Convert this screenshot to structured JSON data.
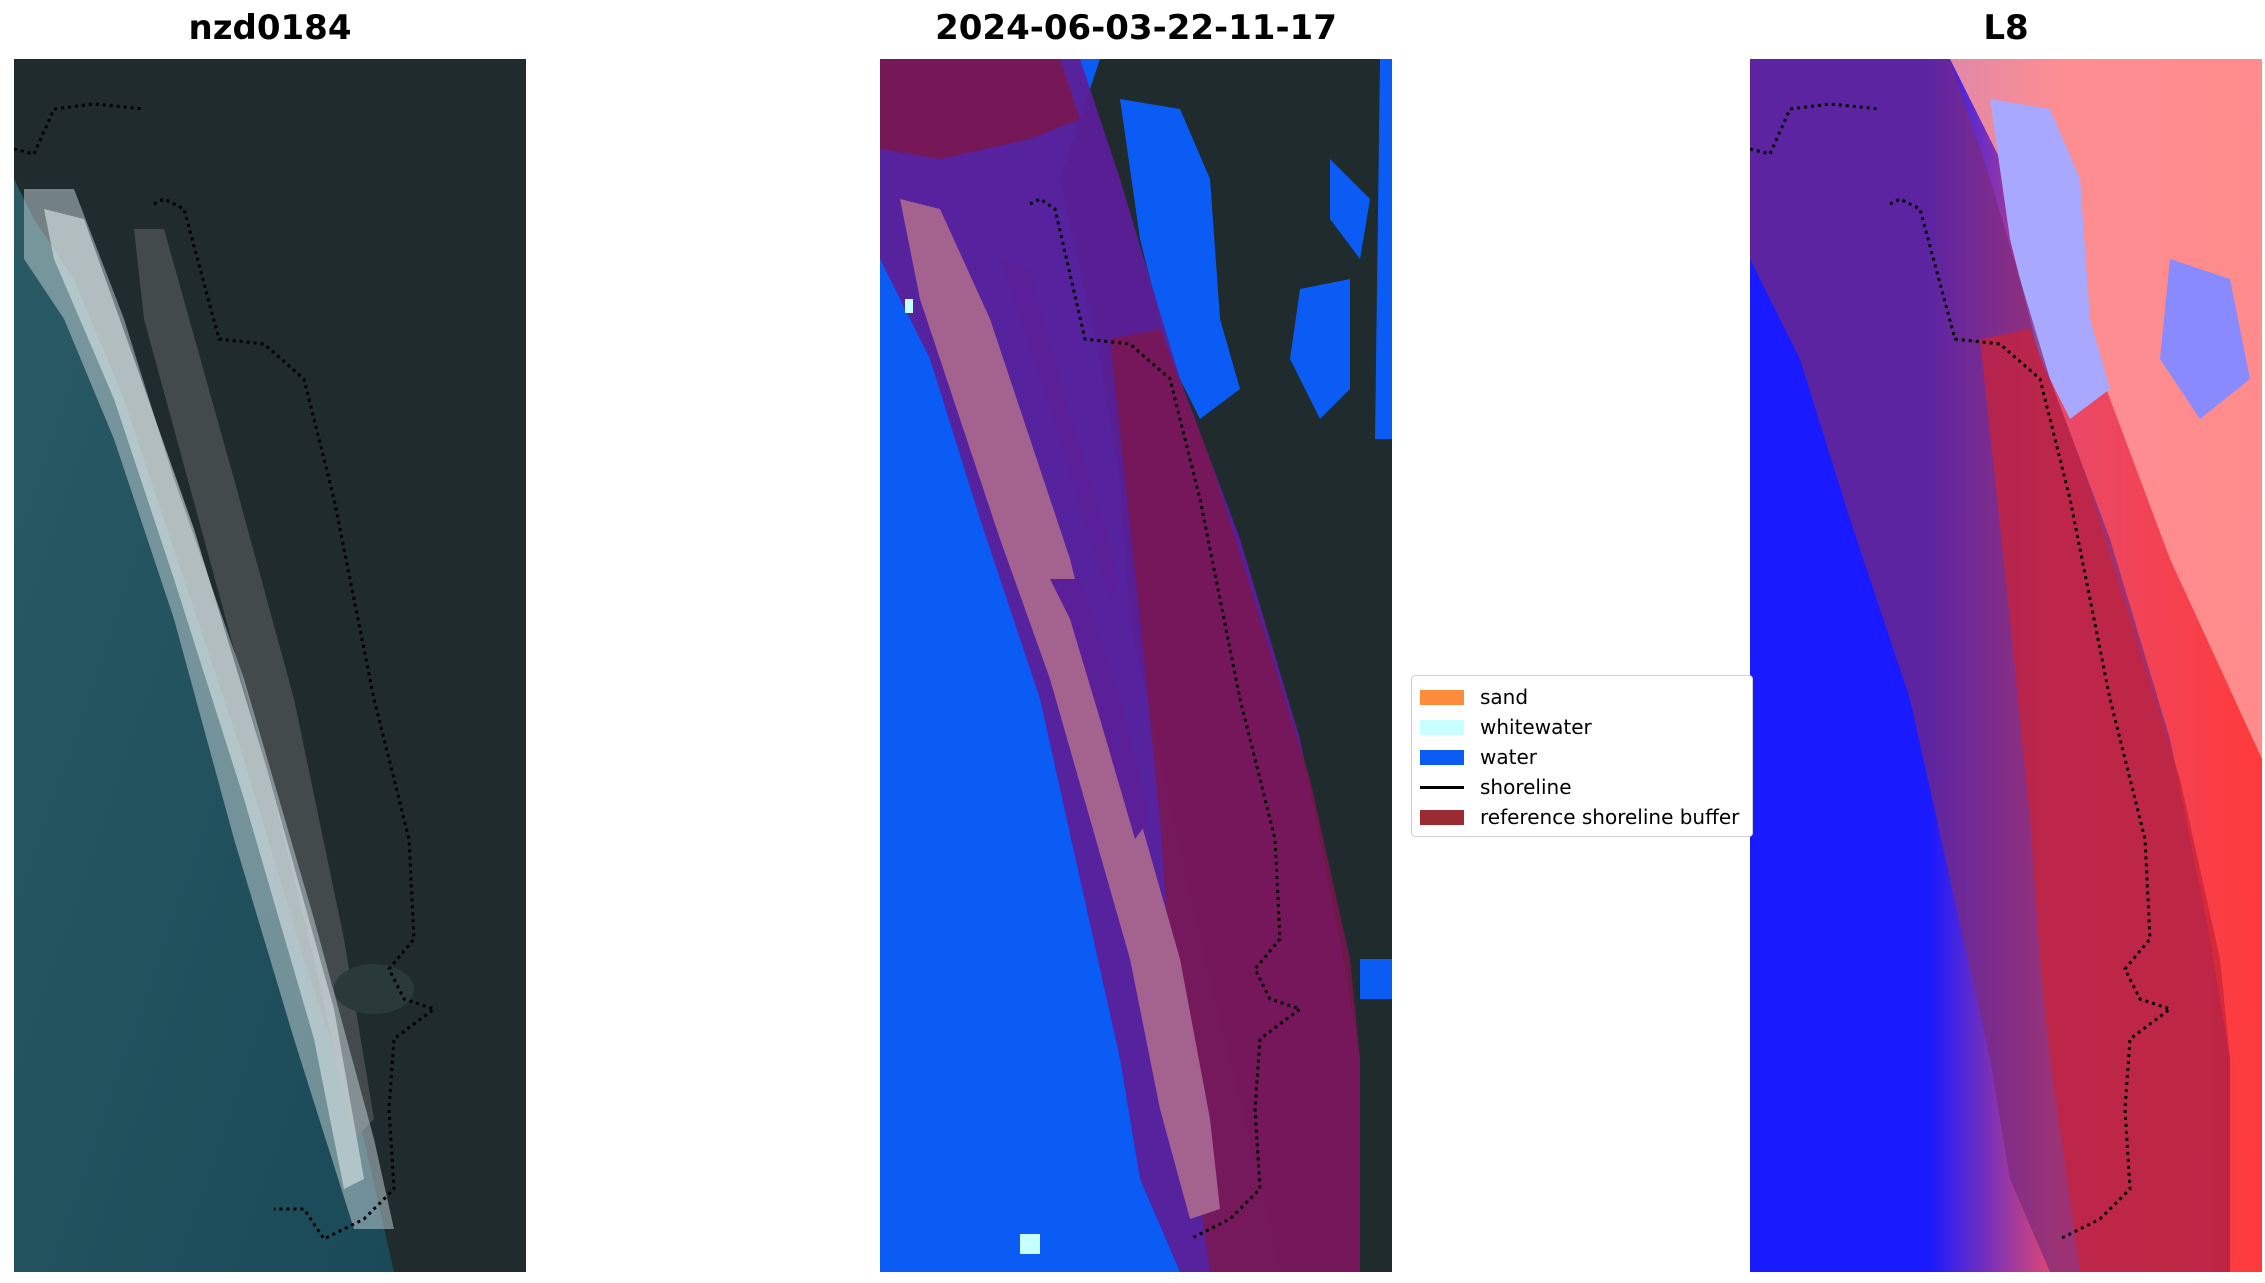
{
  "panels": {
    "rgb": {
      "title": "nzd0184"
    },
    "classified": {
      "title": "2024-06-03-22-11-17"
    },
    "index": {
      "title": "L8"
    }
  },
  "legend": {
    "items": [
      {
        "label": "sand",
        "color": "#ff8c3a",
        "kind": "patch"
      },
      {
        "label": "whitewater",
        "color": "#c8ffff",
        "kind": "patch"
      },
      {
        "label": "water",
        "color": "#0a5cf5",
        "kind": "patch"
      },
      {
        "label": "shoreline",
        "color": "#000000",
        "kind": "line"
      },
      {
        "label": "reference shoreline buffer",
        "color": "#9a2b32",
        "kind": "patch"
      }
    ]
  },
  "colors": {
    "water": "#0a5cf5",
    "sand_overlay": "#a4628f",
    "buffer_overlay": "#5b1f99",
    "buffer_land": "#7a1650",
    "ocean_rgb": "#1f5560",
    "land_rgb": "#1f2a30",
    "index_blue": "#1a1aff",
    "index_red": "#ff3a3a"
  }
}
